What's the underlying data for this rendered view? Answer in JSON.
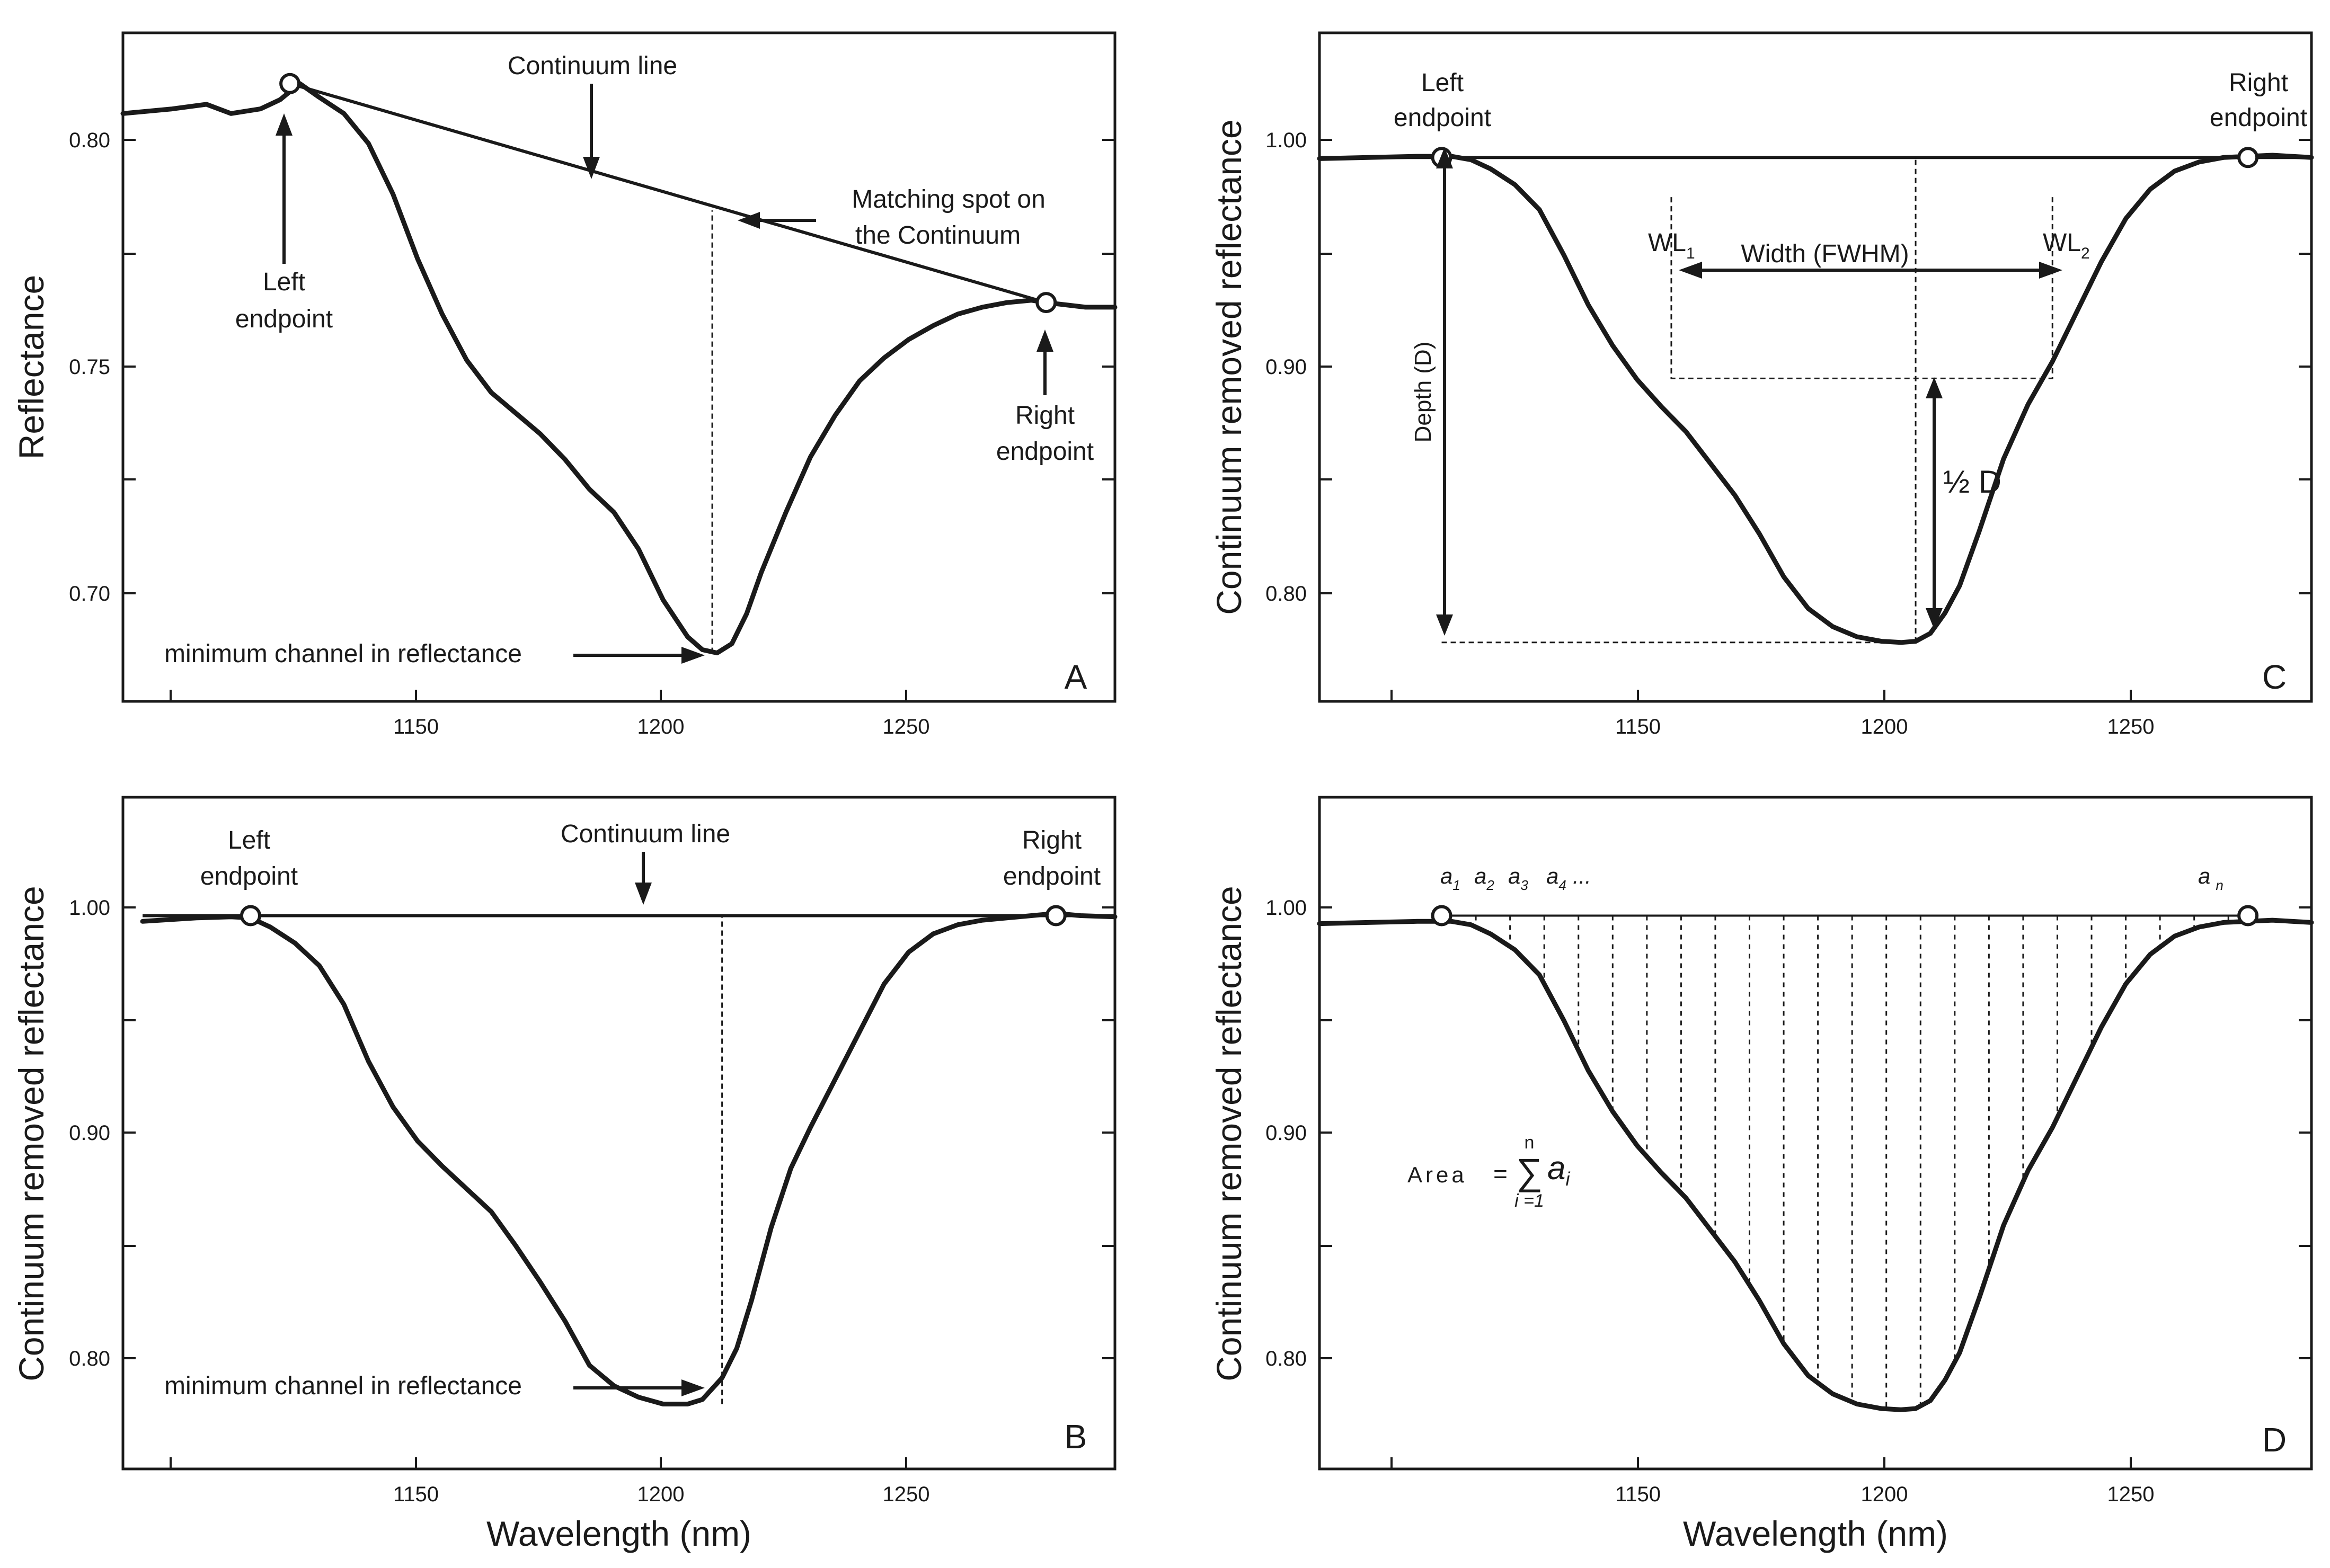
{
  "chart_data": [
    {
      "id": "A",
      "type": "line",
      "panel_letter": "A",
      "ylabel": "Reflectance",
      "xlabel": "",
      "xlim": [
        1090,
        1292
      ],
      "ylim": [
        0.675,
        0.82
      ],
      "x_ticks": [
        1150,
        1200,
        1250
      ],
      "y_ticks": [
        0.7,
        0.75,
        0.8
      ],
      "y_tick_labels": [
        "0.70",
        "0.75",
        "0.80"
      ],
      "x_tick_labels": [
        "1150",
        "1200",
        "1250"
      ],
      "series": [
        {
          "name": "Reflectance spectrum",
          "x": [
            1090,
            1100,
            1107,
            1112,
            1118,
            1122,
            1126,
            1130,
            1135,
            1140,
            1145,
            1150,
            1155,
            1160,
            1165,
            1170,
            1175,
            1180,
            1185,
            1190,
            1195,
            1200,
            1205,
            1208,
            1211,
            1214,
            1217,
            1220,
            1225,
            1230,
            1235,
            1240,
            1245,
            1250,
            1255,
            1260,
            1265,
            1270,
            1275,
            1278,
            1282,
            1286,
            1292
          ],
          "y": [
            0.8025,
            0.8035,
            0.8045,
            0.8025,
            0.8035,
            0.8055,
            0.809,
            0.806,
            0.8025,
            0.796,
            0.785,
            0.771,
            0.759,
            0.749,
            0.742,
            0.7375,
            0.733,
            0.7275,
            0.721,
            0.716,
            0.708,
            0.697,
            0.689,
            0.6862,
            0.6855,
            0.6875,
            0.694,
            0.703,
            0.716,
            0.728,
            0.737,
            0.7445,
            0.7495,
            0.7535,
            0.7565,
            0.759,
            0.7605,
            0.7615,
            0.762,
            0.7615,
            0.761,
            0.7605,
            0.7605
          ]
        },
        {
          "name": "Continuum line",
          "x": [
            1124,
            1278
          ],
          "y": [
            0.809,
            0.7615
          ]
        }
      ],
      "markers": {
        "left_endpoint": {
          "x": 1124,
          "y": 0.809
        },
        "right_endpoint": {
          "x": 1278,
          "y": 0.7615
        },
        "minimum": {
          "x": 1210,
          "y": 0.6855
        },
        "matching_spot": {
          "x": 1210,
          "y": 0.7815
        }
      },
      "annotations": {
        "continuum_line": "Continuum line",
        "matching_spot_1": "Matching spot on",
        "matching_spot_2": "the Continuum",
        "left_endpoint_1": "Left",
        "left_endpoint_2": "endpoint",
        "right_endpoint_1": "Right",
        "right_endpoint_2": "endpoint",
        "minimum": "minimum channel in reflectance"
      }
    },
    {
      "id": "B",
      "type": "line",
      "panel_letter": "B",
      "ylabel": "Continuum removed reflectance",
      "xlabel": "Wavelength (nm)",
      "xlim": [
        1090,
        1292
      ],
      "ylim": [
        0.755,
        1.05
      ],
      "x_ticks": [
        1150,
        1200,
        1250
      ],
      "y_ticks": [
        0.8,
        0.9,
        1.0
      ],
      "y_tick_labels": [
        "0.80",
        "0.90",
        "1.00"
      ],
      "x_tick_labels": [
        "1150",
        "1200",
        "1250"
      ],
      "series": [
        {
          "name": "Continuum removed spectrum",
          "x": [
            1094,
            1105,
            1112,
            1116,
            1120,
            1125,
            1130,
            1135,
            1140,
            1145,
            1150,
            1155,
            1160,
            1165,
            1170,
            1175,
            1180,
            1185,
            1190,
            1195,
            1200,
            1205,
            1208,
            1212,
            1215,
            1218,
            1222,
            1226,
            1230,
            1235,
            1240,
            1245,
            1250,
            1255,
            1260,
            1265,
            1270,
            1275,
            1280,
            1285,
            1292
          ],
          "y": [
            0.9955,
            0.997,
            0.9975,
            0.997,
            0.993,
            0.986,
            0.976,
            0.959,
            0.934,
            0.914,
            0.899,
            0.888,
            0.878,
            0.868,
            0.853,
            0.837,
            0.82,
            0.8005,
            0.7915,
            0.7865,
            0.7835,
            0.7835,
            0.7855,
            0.795,
            0.808,
            0.829,
            0.861,
            0.887,
            0.905,
            0.926,
            0.947,
            0.968,
            0.982,
            0.99,
            0.994,
            0.996,
            0.997,
            0.998,
            0.999,
            0.998,
            0.9975
          ]
        },
        {
          "name": "Continuum line",
          "x": [
            1094,
            1292
          ],
          "y": [
            0.998,
            0.998
          ]
        }
      ],
      "markers": {
        "left_endpoint": {
          "x": 1116,
          "y": 0.998
        },
        "right_endpoint": {
          "x": 1280,
          "y": 0.998
        },
        "minimum": {
          "x": 1212,
          "y": 0.7835
        }
      },
      "annotations": {
        "continuum_line": "Continuum line",
        "left_endpoint_1": "Left",
        "left_endpoint_2": "endpoint",
        "right_endpoint_1": "Right",
        "right_endpoint_2": "endpoint",
        "minimum": "minimum channel in reflectance"
      }
    },
    {
      "id": "C",
      "type": "line",
      "panel_letter": "C",
      "ylabel": "Continuum removed reflectance",
      "xlabel": "",
      "xlim": [
        1085,
        1288
      ],
      "ylim": [
        0.755,
        1.05
      ],
      "x_ticks": [
        1150,
        1200,
        1250
      ],
      "y_ticks": [
        0.8,
        0.9,
        1.0
      ],
      "y_tick_labels": [
        "0.80",
        "0.90",
        "1.00"
      ],
      "x_tick_labels": [
        "1150",
        "1200",
        "1250"
      ],
      "series": [
        {
          "name": "Continuum removed spectrum",
          "x": [
            1085,
            1095,
            1105,
            1112,
            1116,
            1120,
            1125,
            1130,
            1135,
            1140,
            1145,
            1150,
            1155,
            1160,
            1165,
            1170,
            1175,
            1180,
            1185,
            1190,
            1195,
            1200,
            1204,
            1207,
            1210,
            1213,
            1216,
            1220,
            1225,
            1230,
            1235,
            1240,
            1245,
            1250,
            1255,
            1260,
            1265,
            1270,
            1275,
            1280,
            1288
          ],
          "y": [
            0.9945,
            0.995,
            0.9955,
            0.9955,
            0.994,
            0.99,
            0.983,
            0.972,
            0.952,
            0.93,
            0.912,
            0.897,
            0.885,
            0.874,
            0.86,
            0.846,
            0.829,
            0.81,
            0.796,
            0.788,
            0.7835,
            0.7815,
            0.781,
            0.7815,
            0.785,
            0.794,
            0.806,
            0.83,
            0.862,
            0.886,
            0.905,
            0.927,
            0.949,
            0.968,
            0.981,
            0.989,
            0.993,
            0.995,
            0.9955,
            0.996,
            0.995
          ]
        },
        {
          "name": "Continuum line",
          "x": [
            1085,
            1288
          ],
          "y": [
            0.995,
            0.995
          ]
        }
      ],
      "markers": {
        "left_endpoint": {
          "x": 1110,
          "y": 0.995
        },
        "right_endpoint": {
          "x": 1275,
          "y": 0.995
        },
        "minimum": {
          "x": 1207,
          "y": 0.781
        },
        "wl1": {
          "x": 1157,
          "y": 0.9775
        },
        "wl2": {
          "x": 1235,
          "y": 0.9775
        },
        "half_depth_y": 0.8975
      },
      "annotations": {
        "left_endpoint_1": "Left",
        "left_endpoint_2": "endpoint",
        "right_endpoint_1": "Right",
        "right_endpoint_2": "endpoint",
        "depth": "Depth (D)",
        "width": "Width (FWHM)",
        "wl1": "WL",
        "wl1_sub": "1",
        "wl2": "WL",
        "wl2_sub": "2",
        "half_depth": "½ D"
      }
    },
    {
      "id": "D",
      "type": "area",
      "panel_letter": "D",
      "ylabel": "Continuum removed reflectance",
      "xlabel": "Wavelength (nm)",
      "xlim": [
        1085,
        1288
      ],
      "ylim": [
        0.755,
        1.05
      ],
      "x_ticks": [
        1150,
        1200,
        1250
      ],
      "y_ticks": [
        0.8,
        0.9,
        1.0
      ],
      "y_tick_labels": [
        "0.80",
        "0.90",
        "1.00"
      ],
      "x_tick_labels": [
        "1150",
        "1200",
        "1250"
      ],
      "series": [
        {
          "name": "Continuum removed spectrum",
          "x": [
            1085,
            1095,
            1105,
            1112,
            1116,
            1120,
            1125,
            1130,
            1135,
            1140,
            1145,
            1150,
            1155,
            1160,
            1165,
            1170,
            1175,
            1180,
            1185,
            1190,
            1195,
            1200,
            1204,
            1207,
            1210,
            1213,
            1216,
            1220,
            1225,
            1230,
            1235,
            1240,
            1245,
            1250,
            1255,
            1260,
            1265,
            1270,
            1275,
            1280,
            1288
          ],
          "y": [
            0.9945,
            0.995,
            0.9955,
            0.9955,
            0.994,
            0.99,
            0.983,
            0.972,
            0.952,
            0.93,
            0.912,
            0.897,
            0.885,
            0.874,
            0.86,
            0.846,
            0.829,
            0.81,
            0.796,
            0.788,
            0.7835,
            0.7815,
            0.781,
            0.7815,
            0.785,
            0.794,
            0.806,
            0.83,
            0.862,
            0.886,
            0.905,
            0.927,
            0.949,
            0.968,
            0.981,
            0.989,
            0.993,
            0.995,
            0.9955,
            0.996,
            0.995
          ]
        },
        {
          "name": "Continuum line",
          "x": [
            1110,
            1275
          ],
          "y": [
            0.998,
            0.998
          ]
        }
      ],
      "markers": {
        "left_endpoint": {
          "x": 1110,
          "y": 0.998
        },
        "right_endpoint": {
          "x": 1275,
          "y": 0.998
        }
      },
      "area_slices_x": [
        1117,
        1124,
        1131,
        1138,
        1145,
        1152,
        1159,
        1166,
        1173,
        1180,
        1187,
        1194,
        1201,
        1208,
        1215,
        1222,
        1229,
        1236,
        1243,
        1250,
        1257,
        1264,
        1271
      ],
      "annotations": {
        "a": "a",
        "sub1": "1",
        "sub2": "2",
        "sub3": "3",
        "sub4": "4",
        "ellipsis": "...",
        "an_sub": "n",
        "area_label": "Area",
        "equals": "=",
        "sigma": "∑",
        "sum_top": "n",
        "sum_bottom": "i =1",
        "sum_term": "a",
        "sum_term_sub": "i"
      }
    }
  ]
}
